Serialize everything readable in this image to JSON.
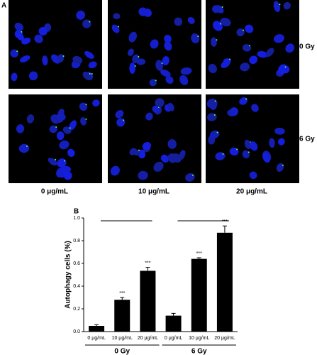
{
  "panel_a": {
    "label": "A",
    "rows": [
      "0 Gy",
      "6 Gy"
    ],
    "columns": [
      "0 μg/mL",
      "10 μg/mL",
      "20 μg/mL"
    ]
  },
  "chart_data": {
    "type": "bar",
    "panel_label": "B",
    "ylabel": "Autophagy cells (%)",
    "categories": [
      "0 μg/mL",
      "10 μg/mL",
      "20 μg/mL",
      "0 μg/mL",
      "10 μg/mL",
      "20 μg/mL"
    ],
    "groups": [
      "0 Gy",
      "6 Gy"
    ],
    "values": [
      0.05,
      0.28,
      0.535,
      0.14,
      0.64,
      0.87
    ],
    "errors": [
      0.01,
      0.02,
      0.03,
      0.02,
      0.01,
      0.06
    ],
    "significance": [
      null,
      "***",
      "***",
      null,
      "***",
      "***"
    ],
    "color": "#000000",
    "ylim": [
      0,
      1.0
    ],
    "yticks": [
      {
        "value": 0,
        "label": "0.0"
      },
      0.2,
      0.4,
      0.6,
      0.8,
      {
        "value": 1,
        "label": "1.0"
      }
    ]
  }
}
